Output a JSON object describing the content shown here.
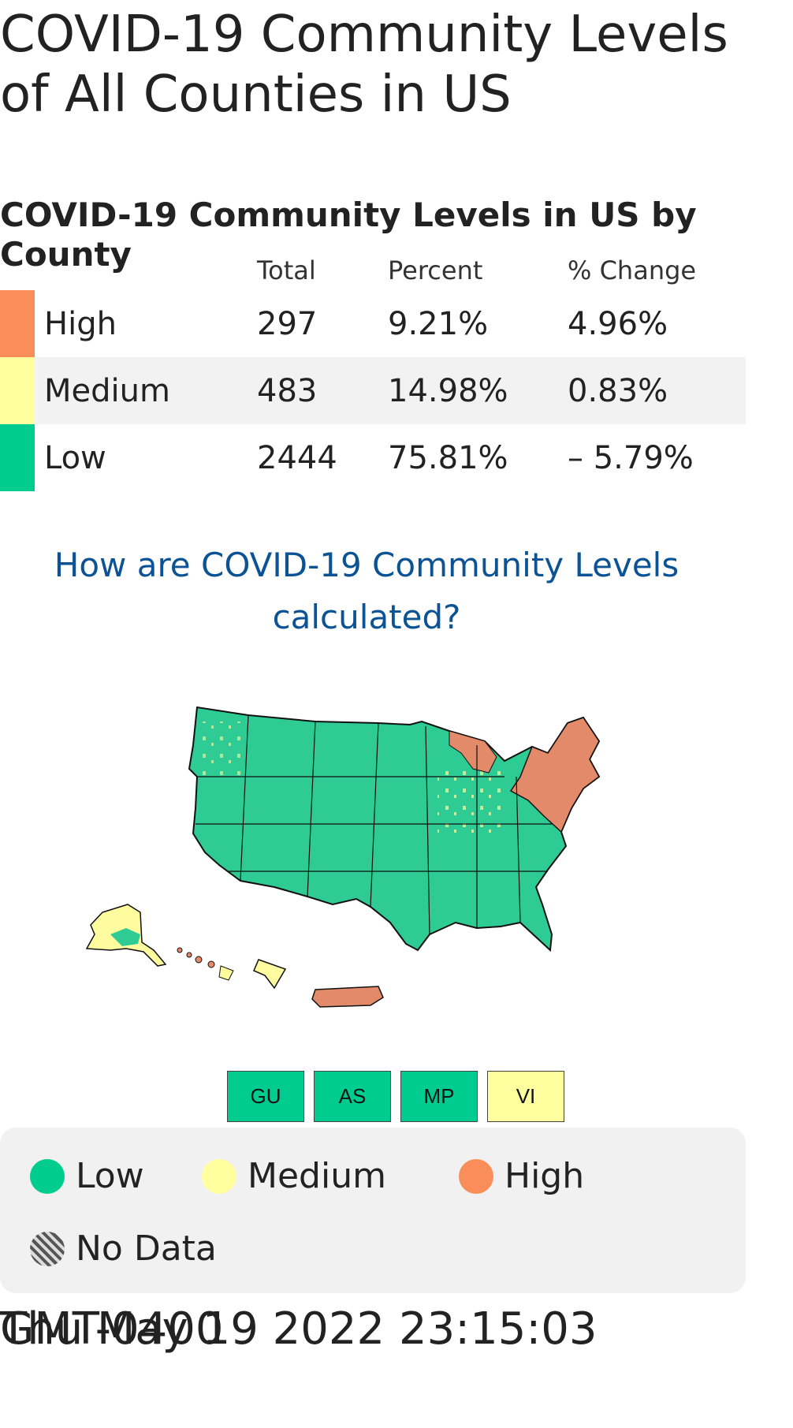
{
  "page": {
    "title": "COVID-19 Community Levels of All Counties in US"
  },
  "table": {
    "title": "COVID-19 Community Levels in US by County",
    "headers": {
      "total": "Total",
      "percent": "Percent",
      "change": "% Change"
    },
    "rows": [
      {
        "level": "High",
        "total": "297",
        "percent": "9.21%",
        "change": "4.96%",
        "color": "#f98e5b"
      },
      {
        "level": "Medium",
        "total": "483",
        "percent": "14.98%",
        "change": "0.83%",
        "color": "#ffffa0"
      },
      {
        "level": "Low",
        "total": "2444",
        "percent": "75.81%",
        "change": "– 5.79%",
        "color": "#00cc8f"
      }
    ]
  },
  "help_link": {
    "label": "How are COVID-19 Community Levels calculated?"
  },
  "map": {
    "colors": {
      "low": "#2fcb95",
      "medium": "#fffb9f",
      "high": "#e38a6b",
      "border": "#111111"
    },
    "territories": [
      {
        "code": "GU",
        "color": "#00cc8f"
      },
      {
        "code": "AS",
        "color": "#00cc8f"
      },
      {
        "code": "MP",
        "color": "#00cc8f"
      },
      {
        "code": "VI",
        "color": "#ffffa0"
      }
    ]
  },
  "legend": {
    "low": {
      "label": "Low",
      "color": "#00cc8f"
    },
    "medium": {
      "label": "Medium",
      "color": "#ffffa0"
    },
    "high": {
      "label": "High",
      "color": "#f98e5b"
    },
    "nodata": {
      "label": "No Data"
    }
  },
  "footer": {
    "timestamp": "Thu May 19 2022 23:15:03",
    "overlay": "GMT-0400"
  }
}
